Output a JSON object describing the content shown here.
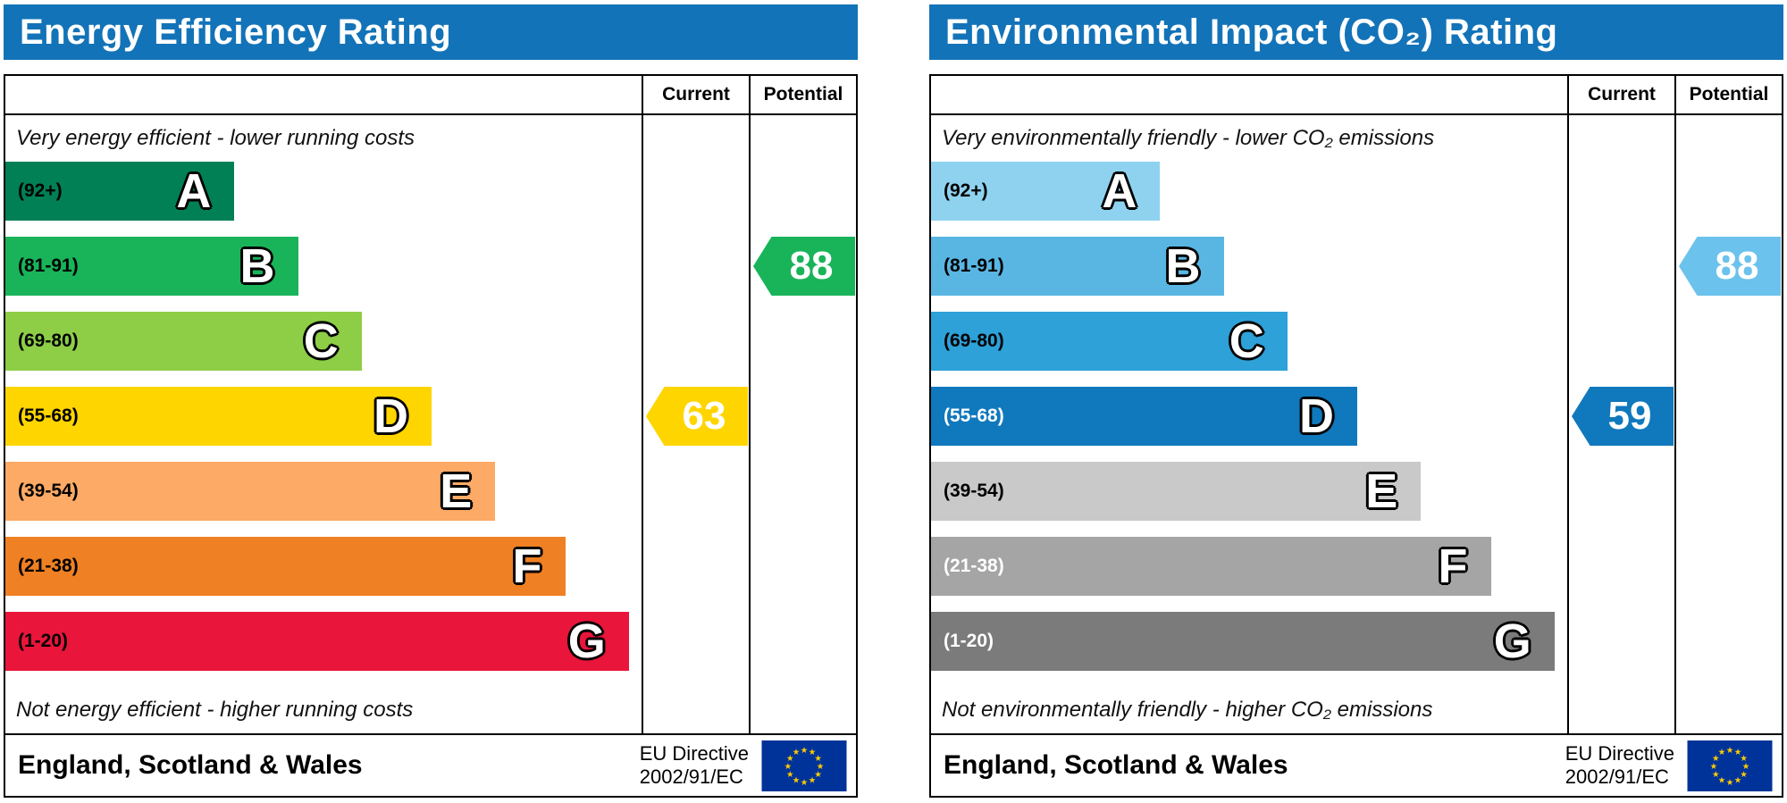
{
  "colors": {
    "header_bg": "#1373b8",
    "border": "#000000",
    "flag_bg": "#003399",
    "flag_star": "#ffcc00"
  },
  "chart_data": [
    {
      "type": "bar",
      "title": "Energy Efficiency Rating",
      "categories": [
        "A (92+)",
        "B (81-91)",
        "C (69-80)",
        "D (55-68)",
        "E (39-54)",
        "F (21-38)",
        "G (1-20)"
      ],
      "values": [
        36,
        46,
        56,
        67,
        77,
        88,
        98
      ],
      "values_note": "relative band bar lengths as % of chart width",
      "current": 63,
      "current_band": "D",
      "potential": 88,
      "potential_band": "B",
      "top_label": "Very energy efficient - lower running costs",
      "bottom_label": "Not energy efficient - higher running costs",
      "column_headers": [
        "Current",
        "Potential"
      ],
      "region": "England, Scotland & Wales",
      "directive": "EU Directive 2002/91/EC"
    },
    {
      "type": "bar",
      "title": "Environmental Impact (CO₂) Rating",
      "categories": [
        "A (92+)",
        "B (81-91)",
        "C (69-80)",
        "D (55-68)",
        "E (39-54)",
        "F (21-38)",
        "G (1-20)"
      ],
      "values": [
        36,
        46,
        56,
        67,
        77,
        88,
        98
      ],
      "values_note": "relative band bar lengths as % of chart width",
      "current": 59,
      "current_band": "D",
      "potential": 88,
      "potential_band": "B",
      "top_label": "Very environmentally friendly - lower CO₂ emissions",
      "bottom_label": "Not environmentally friendly - higher CO₂ emissions",
      "column_headers": [
        "Current",
        "Potential"
      ],
      "region": "England, Scotland & Wales",
      "directive": "EU Directive 2002/91/EC"
    }
  ],
  "panels": [
    {
      "title": "Energy Efficiency Rating",
      "col_current": "Current",
      "col_potential": "Potential",
      "top_note": "Very energy efficient - lower running costs",
      "bottom_note": "Not energy efficient - higher running costs",
      "bands": [
        {
          "letter": "A",
          "range": "(92+)",
          "color": "#008054",
          "width_pct": 36,
          "range_color": "#000000"
        },
        {
          "letter": "B",
          "range": "(81-91)",
          "color": "#19b459",
          "width_pct": 46,
          "range_color": "#000000"
        },
        {
          "letter": "C",
          "range": "(69-80)",
          "color": "#8dce46",
          "width_pct": 56,
          "range_color": "#000000"
        },
        {
          "letter": "D",
          "range": "(55-68)",
          "color": "#ffd500",
          "width_pct": 67,
          "range_color": "#000000"
        },
        {
          "letter": "E",
          "range": "(39-54)",
          "color": "#fcaa65",
          "width_pct": 77,
          "range_color": "#000000"
        },
        {
          "letter": "F",
          "range": "(21-38)",
          "color": "#ef8023",
          "width_pct": 88,
          "range_color": "#000000"
        },
        {
          "letter": "G",
          "range": "(1-20)",
          "color": "#e9153b",
          "width_pct": 98,
          "range_color": "#000000"
        }
      ],
      "current": {
        "value": "63",
        "band_index": 3,
        "color": "#ffd500"
      },
      "potential": {
        "value": "88",
        "band_index": 1,
        "color": "#19b459"
      },
      "footer_region": "England, Scotland & Wales",
      "eu_directive_line1": "EU Directive",
      "eu_directive_line2": "2002/91/EC"
    },
    {
      "title": "Environmental Impact (CO₂) Rating",
      "col_current": "Current",
      "col_potential": "Potential",
      "top_note": "Very environmentally friendly - lower CO₂ emissions",
      "bottom_note": "Not environmentally friendly - higher CO₂ emissions",
      "bands": [
        {
          "letter": "A",
          "range": "(92+)",
          "color": "#8ed2f0",
          "width_pct": 36,
          "range_color": "#000000"
        },
        {
          "letter": "B",
          "range": "(81-91)",
          "color": "#59b6e3",
          "width_pct": 46,
          "range_color": "#000000"
        },
        {
          "letter": "C",
          "range": "(69-80)",
          "color": "#2da1d8",
          "width_pct": 56,
          "range_color": "#000000"
        },
        {
          "letter": "D",
          "range": "(55-68)",
          "color": "#1078bc",
          "width_pct": 67,
          "range_color": "#ffffff"
        },
        {
          "letter": "E",
          "range": "(39-54)",
          "color": "#c9c9c9",
          "width_pct": 77,
          "range_color": "#000000"
        },
        {
          "letter": "F",
          "range": "(21-38)",
          "color": "#a5a5a5",
          "width_pct": 88,
          "range_color": "#ffffff"
        },
        {
          "letter": "G",
          "range": "(1-20)",
          "color": "#7b7b7b",
          "width_pct": 98,
          "range_color": "#ffffff"
        }
      ],
      "current": {
        "value": "59",
        "band_index": 3,
        "color": "#1078bc"
      },
      "potential": {
        "value": "88",
        "band_index": 1,
        "color": "#6bc2ec"
      },
      "footer_region": "England, Scotland & Wales",
      "eu_directive_line1": "EU Directive",
      "eu_directive_line2": "2002/91/EC"
    }
  ]
}
